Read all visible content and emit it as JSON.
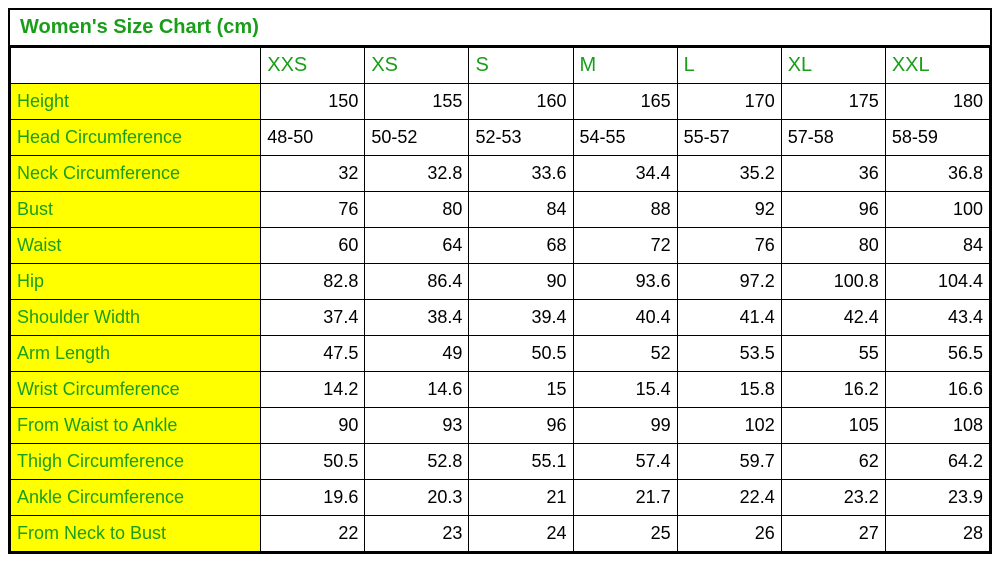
{
  "chart": {
    "type": "table",
    "title": "Women's Size Chart (cm)",
    "colors": {
      "header_text": "#1a9e1a",
      "row_header_bg": "#ffff00",
      "cell_text": "#000000",
      "border": "#000000",
      "background": "#ffffff"
    },
    "title_fontsize": 20,
    "cell_fontsize": 18,
    "font_family": "Comic Sans MS",
    "columns": [
      "XXS",
      "XS",
      "S",
      "M",
      "L",
      "XL",
      "XXL"
    ],
    "rows": [
      {
        "label": "Height",
        "align": "right",
        "values": [
          "150",
          "155",
          "160",
          "165",
          "170",
          "175",
          "180"
        ]
      },
      {
        "label": "Head Circumference",
        "align": "left",
        "values": [
          "48-50",
          "50-52",
          "52-53",
          "54-55",
          "55-57",
          "57-58",
          "58-59"
        ]
      },
      {
        "label": "Neck Circumference",
        "align": "right",
        "values": [
          "32",
          "32.8",
          "33.6",
          "34.4",
          "35.2",
          "36",
          "36.8"
        ]
      },
      {
        "label": "Bust",
        "align": "right",
        "values": [
          "76",
          "80",
          "84",
          "88",
          "92",
          "96",
          "100"
        ]
      },
      {
        "label": "Waist",
        "align": "right",
        "values": [
          "60",
          "64",
          "68",
          "72",
          "76",
          "80",
          "84"
        ]
      },
      {
        "label": "Hip",
        "align": "right",
        "values": [
          "82.8",
          "86.4",
          "90",
          "93.6",
          "97.2",
          "100.8",
          "104.4"
        ]
      },
      {
        "label": "Shoulder Width",
        "align": "right",
        "values": [
          "37.4",
          "38.4",
          "39.4",
          "40.4",
          "41.4",
          "42.4",
          "43.4"
        ]
      },
      {
        "label": "Arm Length",
        "align": "right",
        "values": [
          "47.5",
          "49",
          "50.5",
          "52",
          "53.5",
          "55",
          "56.5"
        ]
      },
      {
        "label": "Wrist Circumference",
        "align": "right",
        "values": [
          "14.2",
          "14.6",
          "15",
          "15.4",
          "15.8",
          "16.2",
          "16.6"
        ]
      },
      {
        "label": "From Waist to Ankle",
        "align": "right",
        "values": [
          "90",
          "93",
          "96",
          "99",
          "102",
          "105",
          "108"
        ]
      },
      {
        "label": "Thigh Circumference",
        "align": "right",
        "values": [
          "50.5",
          "52.8",
          "55.1",
          "57.4",
          "59.7",
          "62",
          "64.2"
        ]
      },
      {
        "label": "Ankle Circumference",
        "align": "right",
        "values": [
          "19.6",
          "20.3",
          "21",
          "21.7",
          "22.4",
          "23.2",
          "23.9"
        ]
      },
      {
        "label": "From Neck to Bust",
        "align": "right",
        "values": [
          "22",
          "23",
          "24",
          "25",
          "26",
          "27",
          "28"
        ]
      }
    ]
  }
}
